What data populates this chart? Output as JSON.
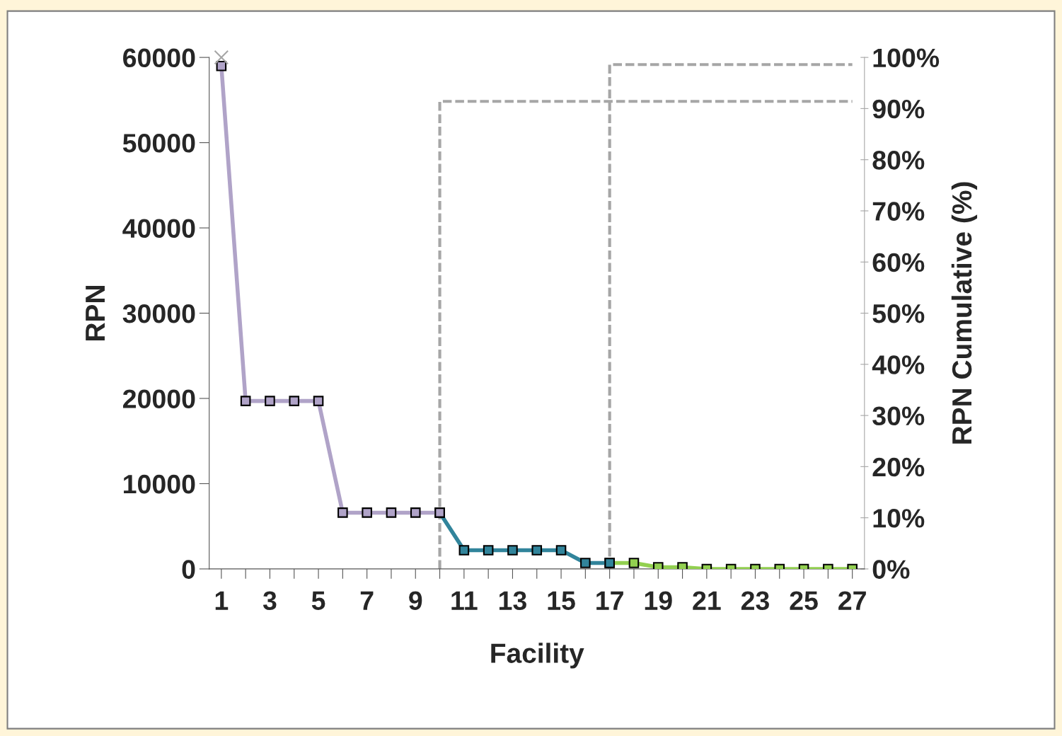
{
  "chart_data": {
    "type": "line",
    "xlabel": "Facility",
    "ylabel": "RPN",
    "y2label": "RPN Cumulative (%)",
    "xlim": [
      0.5,
      27.5
    ],
    "xticks": [
      1,
      {
        "value": 2,
        "label": null
      },
      3,
      {
        "value": 4,
        "label": null
      },
      5,
      {
        "value": 6,
        "label": null
      },
      7,
      {
        "value": 8,
        "label": null
      },
      9,
      {
        "value": 10,
        "label": null
      },
      11,
      {
        "value": 12,
        "label": null
      },
      13,
      {
        "value": 14,
        "label": null
      },
      15,
      {
        "value": 16,
        "label": null
      },
      17,
      {
        "value": 18,
        "label": null
      },
      19,
      {
        "value": 20,
        "label": null
      },
      21,
      {
        "value": 22,
        "label": null
      },
      23,
      {
        "value": 24,
        "label": null
      },
      25,
      {
        "value": 26,
        "label": null
      },
      27
    ],
    "ylim": [
      0,
      60000
    ],
    "yticks": [
      0,
      10000,
      20000,
      30000,
      40000,
      50000,
      60000
    ],
    "y2lim": [
      0,
      100
    ],
    "y2ticks": [
      {
        "value": 0,
        "label": "0%"
      },
      {
        "value": 10,
        "label": "10%"
      },
      {
        "value": 20,
        "label": "20%"
      },
      {
        "value": 30,
        "label": "30%"
      },
      {
        "value": 40,
        "label": "40%"
      },
      {
        "value": 50,
        "label": "50%"
      },
      {
        "value": 60,
        "label": "60%"
      },
      {
        "value": 70,
        "label": "70%"
      },
      {
        "value": 80,
        "label": "80%"
      },
      {
        "value": 90,
        "label": "90%"
      },
      {
        "value": 100,
        "label": "100%"
      }
    ],
    "grid": false,
    "legend": false,
    "series": [
      {
        "color": "#92d050",
        "marker": "square",
        "x": [
          17,
          18,
          19,
          20,
          21,
          22,
          23,
          24,
          25,
          26,
          27
        ],
        "values": [
          700,
          700,
          200,
          200,
          0,
          0,
          0,
          0,
          0,
          0,
          0
        ]
      },
      {
        "color": "#31849b",
        "marker": "square",
        "x": [
          10,
          11,
          12,
          13,
          14,
          15,
          16,
          17
        ],
        "values": [
          6600,
          2200,
          2200,
          2200,
          2200,
          2200,
          700,
          700
        ]
      },
      {
        "color": "#b0a3c8",
        "marker": "square",
        "x": [
          1,
          2,
          3,
          4,
          5,
          6,
          7,
          8,
          9,
          10
        ],
        "values": [
          59000,
          19700,
          19700,
          19700,
          19700,
          6600,
          6600,
          6600,
          6600,
          6600
        ]
      },
      {
        "type": "scatter",
        "color": "#a6a6a6",
        "marker": "cross",
        "x": [
          1
        ],
        "values": [
          60000
        ]
      },
      {
        "axis": "y2",
        "color": "#a6a6a6",
        "marker": "none",
        "line_style": "dashed",
        "x": [
          10,
          10,
          27
        ],
        "values": [
          0,
          91.4,
          91.4
        ]
      },
      {
        "axis": "y2",
        "color": "#a6a6a6",
        "marker": "none",
        "line_style": "dashed",
        "x": [
          17,
          17,
          27
        ],
        "values": [
          0,
          98.6,
          98.6
        ]
      }
    ]
  }
}
